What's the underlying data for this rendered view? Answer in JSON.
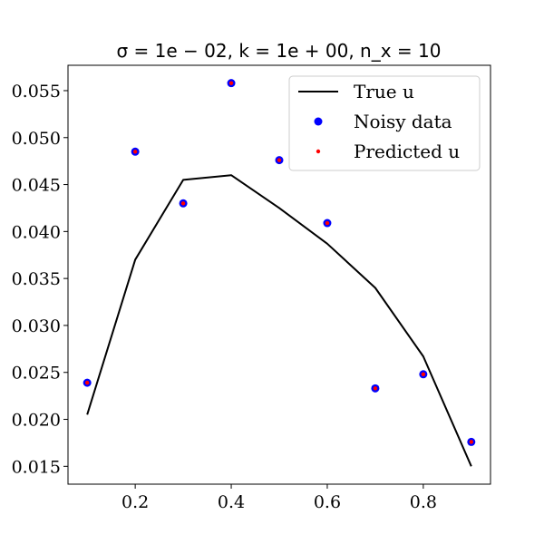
{
  "chart_data": {
    "type": "line",
    "title": "σ = 1e − 02, k = 1e + 00, n_x = 10",
    "xlabel": "",
    "ylabel": "",
    "xlim": [
      0.06,
      0.94
    ],
    "ylim": [
      0.0131,
      0.0577
    ],
    "x_ticks": [
      "0.2",
      "0.4",
      "0.6",
      "0.8"
    ],
    "x_tick_values": [
      0.2,
      0.4,
      0.6,
      0.8
    ],
    "y_ticks": [
      "0.015",
      "0.020",
      "0.025",
      "0.030",
      "0.035",
      "0.040",
      "0.045",
      "0.050",
      "0.055"
    ],
    "y_tick_values": [
      0.015,
      0.02,
      0.025,
      0.03,
      0.035,
      0.04,
      0.045,
      0.05,
      0.055
    ],
    "grid": false,
    "legend_position": "top-right",
    "series": [
      {
        "name": "True u",
        "kind": "line",
        "color": "#000000",
        "x": [
          0.1,
          0.2,
          0.3,
          0.4,
          0.5,
          0.6,
          0.7,
          0.8,
          0.9
        ],
        "y": [
          0.0205,
          0.037,
          0.0455,
          0.046,
          0.0425,
          0.0387,
          0.034,
          0.0267,
          0.015
        ]
      },
      {
        "name": "Noisy data",
        "kind": "scatter",
        "color": "#0000ff",
        "x": [
          0.1,
          0.2,
          0.3,
          0.4,
          0.5,
          0.6,
          0.7,
          0.8,
          0.9
        ],
        "y": [
          0.0239,
          0.0485,
          0.043,
          0.0558,
          0.0476,
          0.0409,
          0.0233,
          0.0248,
          0.0176
        ]
      },
      {
        "name": "Predicted u",
        "kind": "scatter",
        "color": "#ff0000",
        "x": [
          0.1,
          0.2,
          0.3,
          0.4,
          0.5,
          0.6,
          0.7,
          0.8,
          0.9
        ],
        "y": [
          0.0239,
          0.0485,
          0.043,
          0.0558,
          0.0476,
          0.0409,
          0.0233,
          0.0248,
          0.0176
        ]
      }
    ]
  }
}
